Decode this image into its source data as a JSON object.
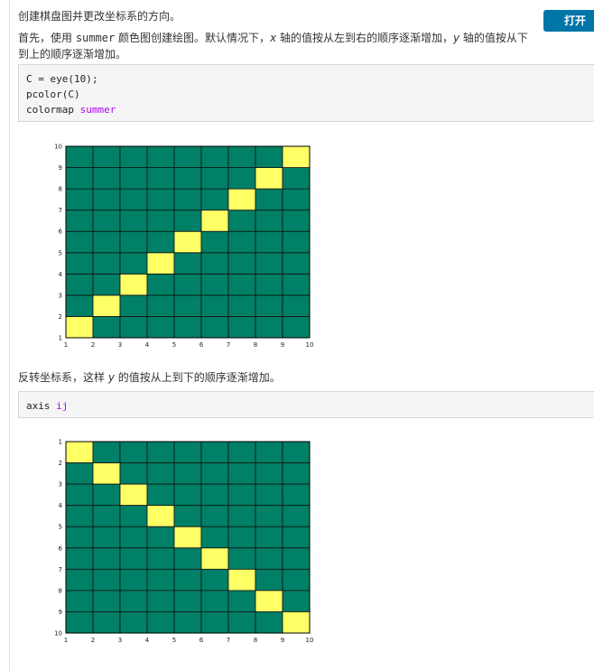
{
  "header": {
    "title": "创建棋盘图并更改坐标系的方向。",
    "open_button": "打开"
  },
  "intro": {
    "part1": "首先，使用 ",
    "code": "summer",
    "part2": " 颜色图创建绘图。默认情况下，",
    "x_var": "x",
    "part3": " 轴的值按从左到右的顺序逐渐增加，",
    "y_var": "y",
    "part4": " 轴的值按从下",
    "line2": "到上的顺序逐渐增加。"
  },
  "code1": {
    "line1": "C = eye(10);",
    "line2": "pcolor(C)",
    "line3_cmd": "colormap ",
    "line3_arg": "summer"
  },
  "middle": {
    "part1": "反转坐标系，这样 ",
    "y_var": "y",
    "part2": " 的值按从上到下的顺序逐渐增加。"
  },
  "code2": {
    "cmd": "axis ",
    "arg": "ij"
  },
  "colors": {
    "cell_base": "#008066",
    "cell_highlight": "#ffff66",
    "keyword": "#a709f5",
    "button": "#0076a8"
  },
  "chart_data": [
    {
      "type": "heatmap",
      "matrix": "eye(10)",
      "x_ticks": [
        "1",
        "2",
        "3",
        "4",
        "5",
        "6",
        "7",
        "8",
        "9",
        "10"
      ],
      "y_ticks": [
        "1",
        "2",
        "3",
        "4",
        "5",
        "6",
        "7",
        "8",
        "9",
        "10"
      ],
      "xlim": [
        1,
        10
      ],
      "ylim": [
        1,
        10
      ],
      "y_direction": "normal",
      "highlight_cells": [
        [
          1,
          1
        ],
        [
          2,
          2
        ],
        [
          3,
          3
        ],
        [
          4,
          4
        ],
        [
          5,
          5
        ],
        [
          6,
          6
        ],
        [
          7,
          7
        ],
        [
          8,
          8
        ],
        [
          9,
          9
        ]
      ],
      "colormap": "summer"
    },
    {
      "type": "heatmap",
      "matrix": "eye(10)",
      "x_ticks": [
        "1",
        "2",
        "3",
        "4",
        "5",
        "6",
        "7",
        "8",
        "9",
        "10"
      ],
      "y_ticks": [
        "1",
        "2",
        "3",
        "4",
        "5",
        "6",
        "7",
        "8",
        "9",
        "10"
      ],
      "xlim": [
        1,
        10
      ],
      "ylim": [
        1,
        10
      ],
      "y_direction": "reverse",
      "highlight_cells": [
        [
          1,
          1
        ],
        [
          2,
          2
        ],
        [
          3,
          3
        ],
        [
          4,
          4
        ],
        [
          5,
          5
        ],
        [
          6,
          6
        ],
        [
          7,
          7
        ],
        [
          8,
          8
        ],
        [
          9,
          9
        ]
      ],
      "colormap": "summer"
    }
  ]
}
